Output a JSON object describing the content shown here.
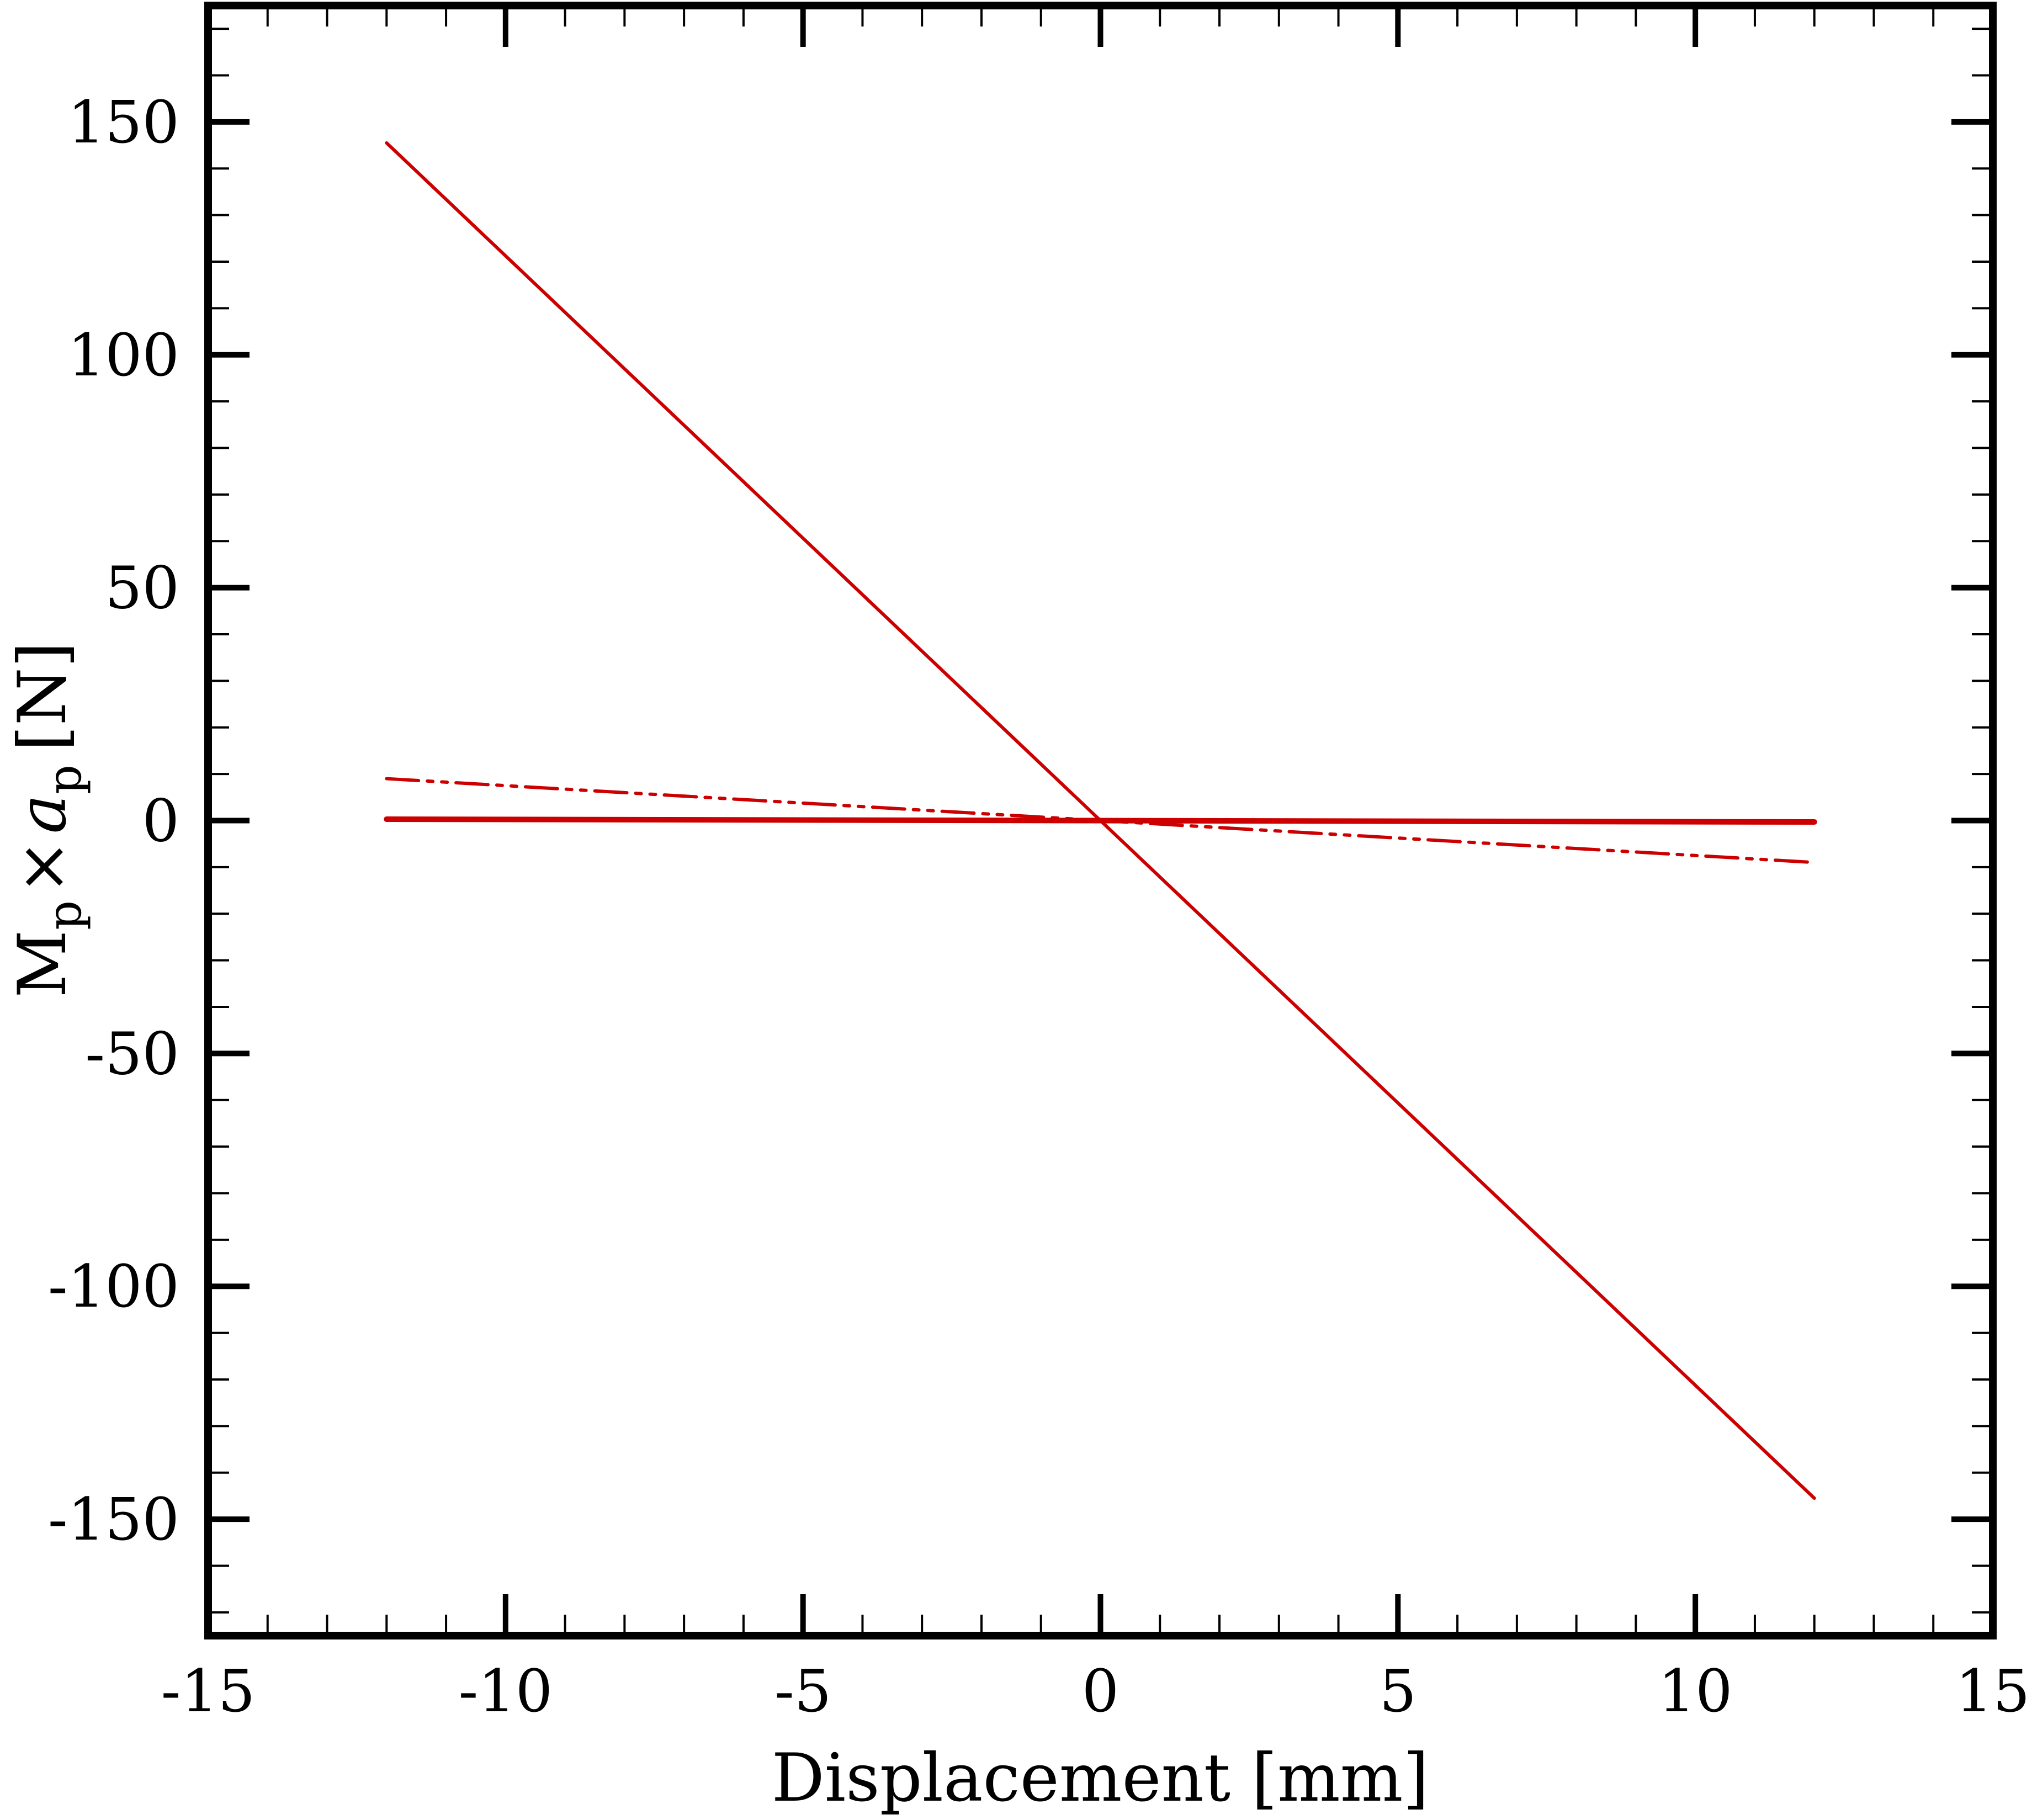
{
  "chart_data": {
    "type": "line",
    "xlabel": "Displacement [mm]",
    "ylabel": {
      "m": "M",
      "m_sub": "p",
      "times": "×",
      "a": "a",
      "a_sub": "p",
      "unit": "[N]"
    },
    "xlim": [
      -15,
      15
    ],
    "ylim": [
      -175,
      175
    ],
    "x_ticks": [
      -15,
      -10,
      -5,
      0,
      5,
      10,
      15
    ],
    "x_tick_labels": [
      "-15",
      "-10",
      "-5",
      "0",
      "5",
      "10",
      "15"
    ],
    "y_ticks": [
      -150,
      -100,
      -50,
      0,
      50,
      100,
      150
    ],
    "y_tick_labels": [
      "-150",
      "-100",
      "-50",
      "0",
      "50",
      "100",
      "150"
    ],
    "grid": false,
    "legend": "none",
    "colors": {
      "series": "#cc0000",
      "axes": "#000000",
      "background": "#ffffff"
    },
    "series": [
      {
        "style": "solid",
        "x": [
          -12,
          12
        ],
        "y": [
          145.5,
          -145.5
        ]
      },
      {
        "style": "dash-dot-dot",
        "x": [
          -12,
          12
        ],
        "y": [
          9,
          -9
        ]
      },
      {
        "style": "solid-thick",
        "x": [
          -12,
          12
        ],
        "y": [
          0.3,
          -0.3
        ]
      }
    ]
  }
}
